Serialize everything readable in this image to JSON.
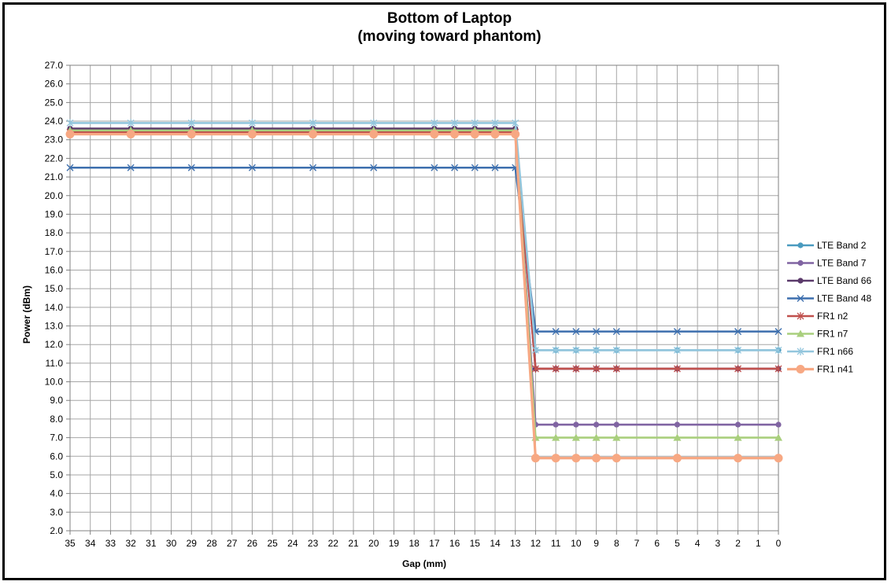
{
  "chart_data": {
    "type": "line",
    "title": [
      "Bottom of Laptop",
      "(moving toward phantom)"
    ],
    "xlabel": "Gap (mm)",
    "ylabel": "Power (dBm)",
    "x_reversed": true,
    "xlim": [
      0,
      35
    ],
    "ylim": [
      2.0,
      27.0
    ],
    "x_ticks": [
      35,
      34,
      33,
      32,
      31,
      30,
      29,
      28,
      27,
      26,
      25,
      24,
      23,
      22,
      21,
      20,
      19,
      18,
      17,
      16,
      15,
      14,
      13,
      12,
      11,
      10,
      9,
      8,
      7,
      6,
      5,
      4,
      3,
      2,
      1,
      0
    ],
    "y_ticks": [
      "2.0",
      "3.0",
      "4.0",
      "5.0",
      "6.0",
      "7.0",
      "8.0",
      "9.0",
      "10.0",
      "11.0",
      "12.0",
      "13.0",
      "14.0",
      "15.0",
      "16.0",
      "17.0",
      "18.0",
      "19.0",
      "20.0",
      "21.0",
      "22.0",
      "23.0",
      "24.0",
      "25.0",
      "26.0",
      "27.0"
    ],
    "grid": true,
    "legend_position": "right",
    "x": [
      35,
      32,
      29,
      26,
      23,
      20,
      17,
      16,
      15,
      14,
      13,
      12,
      11,
      10,
      9,
      8,
      5,
      2,
      0
    ],
    "series": [
      {
        "name": "LTE Band 2",
        "color": "#4a9bbf",
        "marker": "circle",
        "values": [
          23.5,
          23.5,
          23.5,
          23.5,
          23.5,
          23.5,
          23.5,
          23.5,
          23.5,
          23.5,
          23.5,
          11.7,
          11.7,
          11.7,
          11.7,
          11.7,
          11.7,
          11.7,
          11.7
        ]
      },
      {
        "name": "LTE Band 7",
        "color": "#8064a2",
        "marker": "circle",
        "values": [
          23.5,
          23.5,
          23.5,
          23.5,
          23.5,
          23.5,
          23.5,
          23.5,
          23.5,
          23.5,
          23.5,
          7.7,
          7.7,
          7.7,
          7.7,
          7.7,
          7.7,
          7.7,
          7.7
        ]
      },
      {
        "name": "LTE Band 66",
        "color": "#5b3a6b",
        "marker": "circle",
        "values": [
          23.6,
          23.6,
          23.6,
          23.6,
          23.6,
          23.6,
          23.6,
          23.6,
          23.6,
          23.6,
          23.6,
          10.7,
          10.7,
          10.7,
          10.7,
          10.7,
          10.7,
          10.7,
          10.7
        ]
      },
      {
        "name": "LTE Band 48",
        "color": "#3d6fae",
        "marker": "x",
        "values": [
          21.5,
          21.5,
          21.5,
          21.5,
          21.5,
          21.5,
          21.5,
          21.5,
          21.5,
          21.5,
          21.5,
          12.7,
          12.7,
          12.7,
          12.7,
          12.7,
          12.7,
          12.7,
          12.7
        ]
      },
      {
        "name": "FR1 n2",
        "color": "#c0504d",
        "marker": "star",
        "values": [
          23.4,
          23.4,
          23.4,
          23.4,
          23.4,
          23.4,
          23.4,
          23.4,
          23.4,
          23.4,
          23.4,
          10.7,
          10.7,
          10.7,
          10.7,
          10.7,
          10.7,
          10.7,
          10.7
        ]
      },
      {
        "name": "FR1 n7",
        "color": "#a9cf7d",
        "marker": "triangle",
        "values": [
          23.5,
          23.5,
          23.5,
          23.5,
          23.5,
          23.5,
          23.5,
          23.5,
          23.5,
          23.5,
          23.5,
          7.0,
          7.0,
          7.0,
          7.0,
          7.0,
          7.0,
          7.0,
          7.0
        ]
      },
      {
        "name": "FR1 n66",
        "color": "#93c6dd",
        "marker": "star",
        "values": [
          23.9,
          23.9,
          23.9,
          23.9,
          23.9,
          23.9,
          23.9,
          23.9,
          23.9,
          23.9,
          23.9,
          11.7,
          11.7,
          11.7,
          11.7,
          11.7,
          11.7,
          11.7,
          11.7
        ]
      },
      {
        "name": "FR1 n41",
        "color": "#f7a883",
        "marker": "circle-large",
        "values": [
          23.3,
          23.3,
          23.3,
          23.3,
          23.3,
          23.3,
          23.3,
          23.3,
          23.3,
          23.3,
          23.3,
          5.9,
          5.9,
          5.9,
          5.9,
          5.9,
          5.9,
          5.9,
          5.9
        ]
      }
    ]
  }
}
